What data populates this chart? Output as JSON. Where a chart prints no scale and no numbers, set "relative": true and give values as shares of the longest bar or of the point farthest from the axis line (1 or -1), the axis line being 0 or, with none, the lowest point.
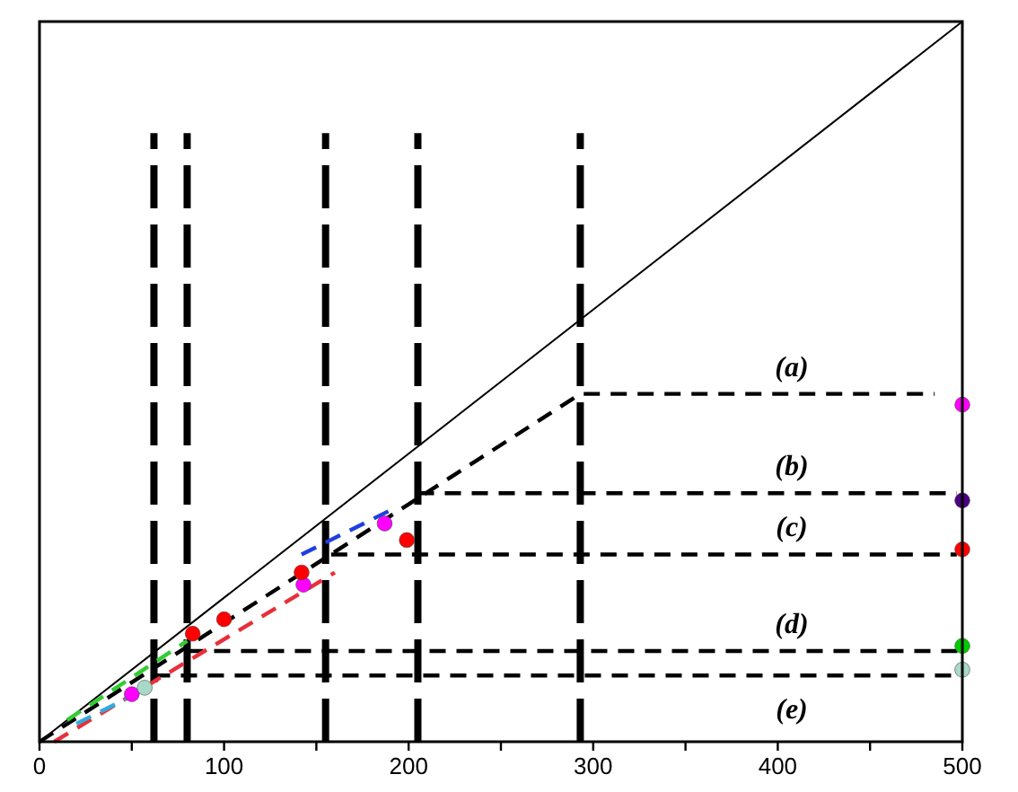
{
  "chart_data": {
    "type": "line",
    "relative": true,
    "xlim": [
      0,
      500
    ],
    "xticks": [
      0,
      {
        "value": 50,
        "label": null
      },
      100,
      {
        "value": 150,
        "label": null
      },
      200,
      {
        "value": 250,
        "label": null
      },
      300,
      {
        "value": 350,
        "label": null
      },
      400,
      {
        "value": 450,
        "label": null
      },
      500
    ],
    "series": [
      {
        "color": "#000000",
        "line_style": "solid",
        "x": [
          0,
          500
        ],
        "values": [
          0,
          1
        ]
      },
      {
        "color": "#000000",
        "line_style": "dashed",
        "x": [
          0,
          293,
          485
        ],
        "values": [
          0,
          0.483,
          0.483
        ]
      },
      {
        "color": "#000000",
        "line_style": "dashed",
        "x": [
          205,
          497
        ],
        "values": [
          0.345,
          0.345
        ]
      },
      {
        "color": "#000000",
        "line_style": "dashed",
        "x": [
          158,
          497
        ],
        "values": [
          0.26,
          0.26
        ]
      },
      {
        "color": "#000000",
        "line_style": "dashed",
        "x": [
          80,
          500
        ],
        "values": [
          0.126,
          0.126
        ]
      },
      {
        "color": "#000000",
        "line_style": "dashed",
        "x": [
          62,
          500
        ],
        "values": [
          0.092,
          0.092
        ]
      },
      {
        "color": "#e8303a",
        "line_style": "dashed",
        "x": [
          8,
          160
        ],
        "values": [
          0,
          0.235
        ]
      },
      {
        "color": "#1f3fe0",
        "line_style": "dashed",
        "x": [
          142,
          189
        ],
        "values": [
          0.26,
          0.32
        ]
      },
      {
        "color": "#33cc33",
        "line_style": "dashed",
        "x": [
          15,
          80
        ],
        "values": [
          0.03,
          0.14
        ]
      },
      {
        "color": "#33aadd",
        "line_style": "dashed",
        "x": [
          20,
          55
        ],
        "values": [
          0.025,
          0.07
        ]
      },
      {
        "type": "scatter",
        "color": "#ff00ff",
        "marker": "circle",
        "x": [
          50,
          143,
          187,
          500
        ],
        "values": [
          0.066,
          0.218,
          0.303,
          0.468
        ]
      },
      {
        "type": "scatter",
        "color": "#ff0000",
        "marker": "circle",
        "x": [
          83,
          100,
          142,
          199,
          500
        ],
        "values": [
          0.15,
          0.17,
          0.235,
          0.28,
          0.267
        ]
      },
      {
        "type": "scatter",
        "color": "#4b0082",
        "marker": "circle",
        "x": [
          500
        ],
        "values": [
          0.335
        ]
      },
      {
        "type": "scatter",
        "color": "#00cc00",
        "marker": "circle",
        "x": [
          500
        ],
        "values": [
          0.133
        ]
      },
      {
        "type": "scatter",
        "color": "#a8d8c8",
        "marker": "circle",
        "x": [
          57,
          500
        ],
        "values": [
          0.075,
          0.1
        ]
      }
    ],
    "ref_lines": [
      {
        "axis": "x",
        "value": 62
      },
      {
        "axis": "x",
        "value": 80
      },
      {
        "axis": "x",
        "value": 155
      },
      {
        "axis": "x",
        "value": 205
      },
      {
        "axis": "x",
        "value": 293
      }
    ],
    "annotations": [
      {
        "text": "(a)",
        "y": 0.483
      },
      {
        "text": "(b)",
        "y": 0.345
      },
      {
        "text": "(c)",
        "y": 0.26
      },
      {
        "text": "(d)",
        "y": 0.126
      },
      {
        "text": "(e)",
        "y": 0.092
      }
    ],
    "grid": false
  }
}
